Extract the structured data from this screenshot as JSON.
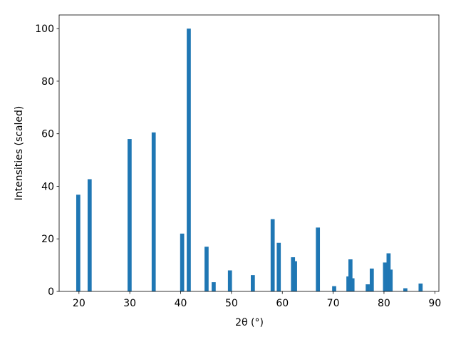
{
  "chart_data": {
    "type": "bar",
    "x": [
      19.86,
      22.1,
      29.96,
      34.7,
      40.3,
      41.6,
      45.1,
      46.5,
      49.7,
      54.2,
      58.1,
      59.3,
      62.1,
      62.5,
      67.0,
      70.2,
      73.0,
      73.4,
      73.8,
      76.8,
      77.6,
      80.2,
      80.9,
      81.3,
      84.2,
      87.2
    ],
    "values": [
      36.8,
      42.7,
      58,
      60.5,
      22,
      100,
      17,
      3.5,
      8,
      6.2,
      27.5,
      18.5,
      13,
      11.5,
      24.3,
      2,
      5.7,
      12.2,
      5,
      2.7,
      8.7,
      11,
      14.5,
      8.3,
      1.2,
      3
    ],
    "color": "#1f77b4",
    "xlabel": "2θ (°)",
    "ylabel": "Intensities (scaled)",
    "xlim": [
      16.1,
      90.8
    ],
    "ylim": [
      0,
      105.2
    ],
    "xticks": [
      20,
      30,
      40,
      50,
      60,
      70,
      80,
      90
    ],
    "yticks": [
      0,
      20,
      40,
      60,
      80,
      100
    ]
  }
}
